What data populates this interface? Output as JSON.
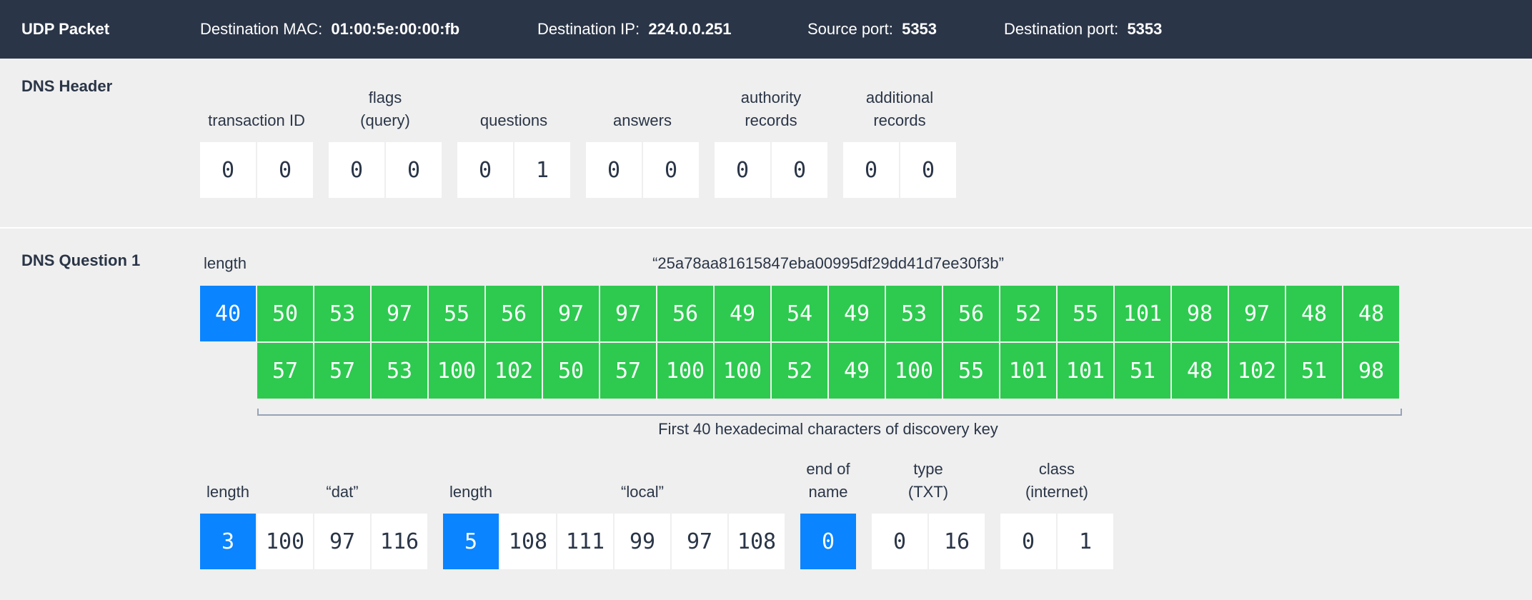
{
  "udp": {
    "title": "UDP Packet",
    "dest_mac_label": "Destination MAC:",
    "dest_mac": "01:00:5e:00:00:fb",
    "dest_ip_label": "Destination IP:",
    "dest_ip": "224.0.0.251",
    "src_port_label": "Source port:",
    "src_port": "5353",
    "dest_port_label": "Destination port:",
    "dest_port": "5353"
  },
  "dns_header": {
    "title": "DNS Header",
    "fields": [
      {
        "label": "transaction ID",
        "bytes": [
          "0",
          "0"
        ]
      },
      {
        "label": "flags\n(query)",
        "bytes": [
          "0",
          "0"
        ]
      },
      {
        "label": "questions",
        "bytes": [
          "0",
          "1"
        ]
      },
      {
        "label": "answers",
        "bytes": [
          "0",
          "0"
        ]
      },
      {
        "label": "authority\nrecords",
        "bytes": [
          "0",
          "0"
        ]
      },
      {
        "label": "additional\nrecords",
        "bytes": [
          "0",
          "0"
        ]
      }
    ]
  },
  "dns_question": {
    "title": "DNS Question 1",
    "key_length_label": "length",
    "key_length": "40",
    "key_string": "“25a78aa81615847eba00995df29dd41d7ee30f3b”",
    "key_bytes": [
      "50",
      "53",
      "97",
      "55",
      "56",
      "97",
      "97",
      "56",
      "49",
      "54",
      "49",
      "53",
      "56",
      "52",
      "55",
      "101",
      "98",
      "97",
      "48",
      "48",
      "57",
      "57",
      "53",
      "100",
      "102",
      "50",
      "57",
      "100",
      "100",
      "52",
      "49",
      "100",
      "55",
      "101",
      "101",
      "51",
      "48",
      "102",
      "51",
      "98"
    ],
    "key_caption": "First 40 hexadecimal characters of discovery key",
    "dat": {
      "length_label": "length",
      "length": "3",
      "label": "“dat”",
      "bytes": [
        "100",
        "97",
        "116"
      ]
    },
    "local": {
      "length_label": "length",
      "length": "5",
      "label": "“local”",
      "bytes": [
        "108",
        "111",
        "99",
        "97",
        "108"
      ]
    },
    "end_of_name": {
      "label": "end of\nname",
      "bytes": [
        "0"
      ]
    },
    "type": {
      "label": "type\n(TXT)",
      "bytes": [
        "0",
        "16"
      ]
    },
    "class": {
      "label": "class\n(internet)",
      "bytes": [
        "0",
        "1"
      ]
    }
  },
  "colors": {
    "header_bg": "#2a3547",
    "length_blue": "#0a84ff",
    "key_green": "#2dca4f",
    "background": "#efefef"
  }
}
